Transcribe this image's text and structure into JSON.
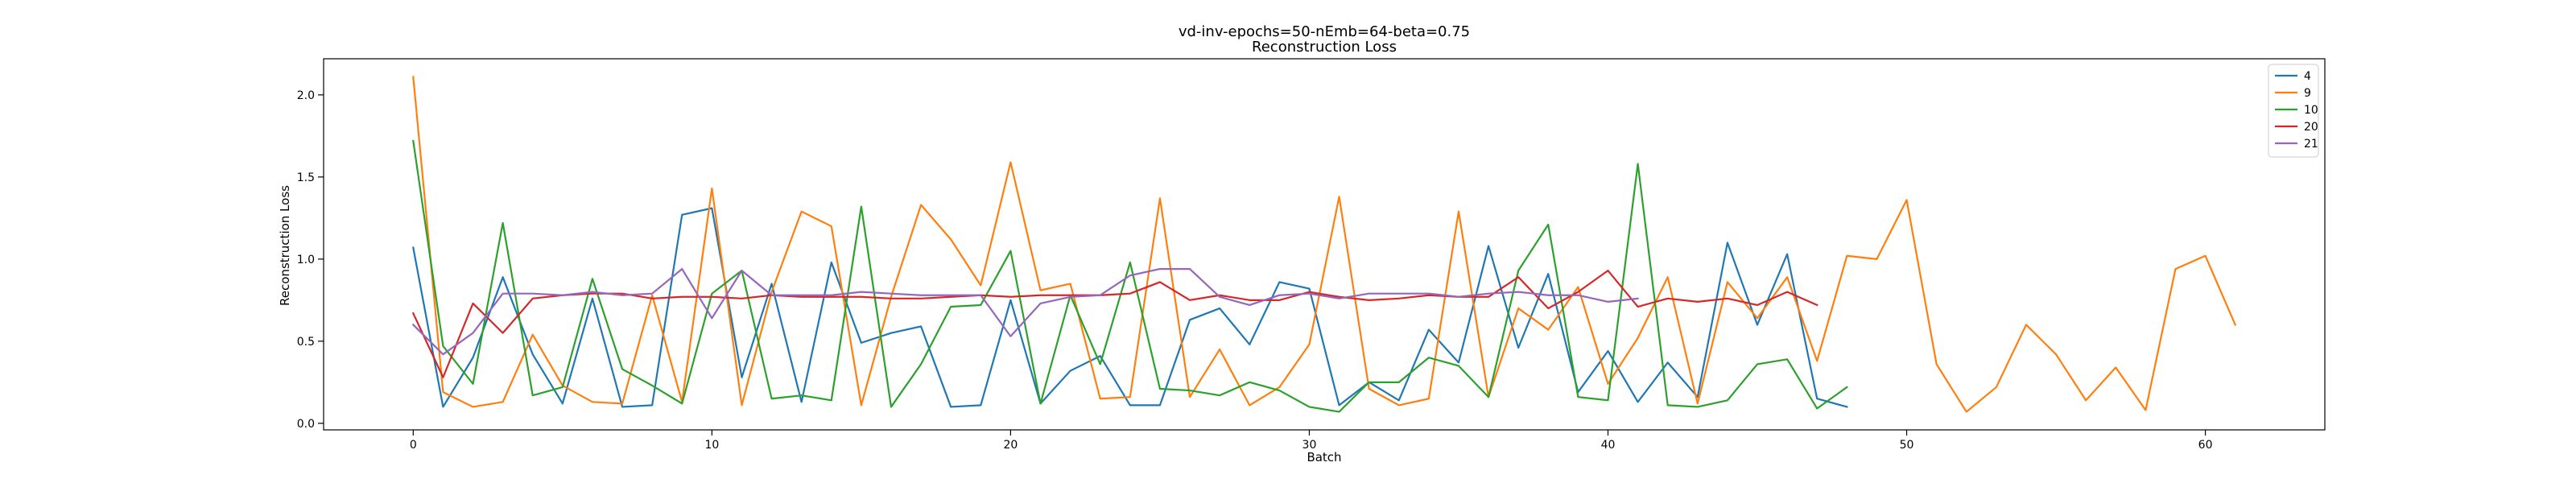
{
  "chart_data": {
    "type": "line",
    "title": "vd-inv-epochs=50-nEmb=64-beta=0.75",
    "subtitle": "Reconstruction Loss",
    "xlabel": "Batch",
    "ylabel": "Reconstruction Loss",
    "xlim": [
      -3,
      64
    ],
    "ylim": [
      -0.04,
      2.22
    ],
    "xticks": [
      0,
      10,
      20,
      30,
      40,
      50,
      60
    ],
    "yticks": [
      0.0,
      0.5,
      1.0,
      1.5,
      2.0
    ],
    "xtick_labels": [
      "0",
      "10",
      "20",
      "30",
      "40",
      "50",
      "60"
    ],
    "ytick_labels": [
      "0.0",
      "0.5",
      "1.0",
      "1.5",
      "2.0"
    ],
    "grid": false,
    "legend_position": "top-right",
    "series": [
      {
        "name": "4",
        "color": "#1f77b4",
        "values": [
          1.07,
          0.1,
          0.4,
          0.89,
          0.42,
          0.12,
          0.76,
          0.1,
          0.11,
          1.27,
          1.31,
          0.28,
          0.85,
          0.13,
          0.98,
          0.49,
          0.55,
          0.59,
          0.1,
          0.11,
          0.75,
          0.12,
          0.32,
          0.41,
          0.11,
          0.11,
          0.63,
          0.7,
          0.48,
          0.86,
          0.82,
          0.11,
          0.25,
          0.14,
          0.57,
          0.37,
          1.08,
          0.46,
          0.91,
          0.19,
          0.44,
          0.13,
          0.37,
          0.16,
          1.1,
          0.6,
          1.03,
          0.15,
          0.1
        ]
      },
      {
        "name": "9",
        "color": "#ff7f0e",
        "values": [
          2.11,
          0.19,
          0.1,
          0.13,
          0.54,
          0.23,
          0.13,
          0.12,
          0.78,
          0.13,
          1.43,
          0.11,
          0.8,
          1.29,
          1.2,
          0.11,
          0.77,
          1.33,
          1.12,
          0.84,
          1.59,
          0.81,
          0.85,
          0.15,
          0.16,
          1.37,
          0.16,
          0.45,
          0.11,
          0.22,
          0.48,
          1.38,
          0.21,
          0.11,
          0.15,
          1.29,
          0.16,
          0.7,
          0.57,
          0.83,
          0.24,
          0.52,
          0.89,
          0.12,
          0.86,
          0.64,
          0.89,
          0.38,
          1.02,
          1.0,
          1.36,
          0.36,
          0.07,
          0.22,
          0.6,
          0.42,
          0.14,
          0.34,
          0.08,
          0.94,
          1.02,
          0.6
        ]
      },
      {
        "name": "10",
        "color": "#2ca02c",
        "values": [
          1.72,
          0.47,
          0.24,
          1.22,
          0.17,
          0.22,
          0.88,
          0.33,
          0.23,
          0.12,
          0.79,
          0.93,
          0.15,
          0.17,
          0.14,
          1.32,
          0.1,
          0.36,
          0.71,
          0.72,
          1.05,
          0.12,
          0.78,
          0.36,
          0.98,
          0.21,
          0.2,
          0.17,
          0.25,
          0.2,
          0.1,
          0.07,
          0.25,
          0.25,
          0.4,
          0.35,
          0.16,
          0.93,
          1.21,
          0.16,
          0.14,
          1.58,
          0.11,
          0.1,
          0.14,
          0.36,
          0.39,
          0.09,
          0.22
        ]
      },
      {
        "name": "20",
        "color": "#d62728",
        "values": [
          0.67,
          0.28,
          0.73,
          0.55,
          0.76,
          0.78,
          0.79,
          0.79,
          0.76,
          0.77,
          0.77,
          0.76,
          0.78,
          0.77,
          0.77,
          0.77,
          0.76,
          0.76,
          0.77,
          0.78,
          0.77,
          0.78,
          0.78,
          0.78,
          0.79,
          0.86,
          0.75,
          0.78,
          0.75,
          0.75,
          0.8,
          0.77,
          0.75,
          0.76,
          0.78,
          0.77,
          0.77,
          0.89,
          0.7,
          0.8,
          0.93,
          0.71,
          0.76,
          0.74,
          0.76,
          0.72,
          0.8,
          0.72
        ]
      },
      {
        "name": "21",
        "color": "#9467bd",
        "values": [
          0.6,
          0.42,
          0.55,
          0.79,
          0.79,
          0.78,
          0.8,
          0.78,
          0.79,
          0.94,
          0.64,
          0.93,
          0.78,
          0.78,
          0.78,
          0.8,
          0.79,
          0.78,
          0.78,
          0.78,
          0.53,
          0.73,
          0.77,
          0.78,
          0.9,
          0.94,
          0.94,
          0.77,
          0.72,
          0.78,
          0.79,
          0.76,
          0.79,
          0.79,
          0.79,
          0.77,
          0.79,
          0.8,
          0.78,
          0.78,
          0.74,
          0.76
        ]
      }
    ]
  }
}
